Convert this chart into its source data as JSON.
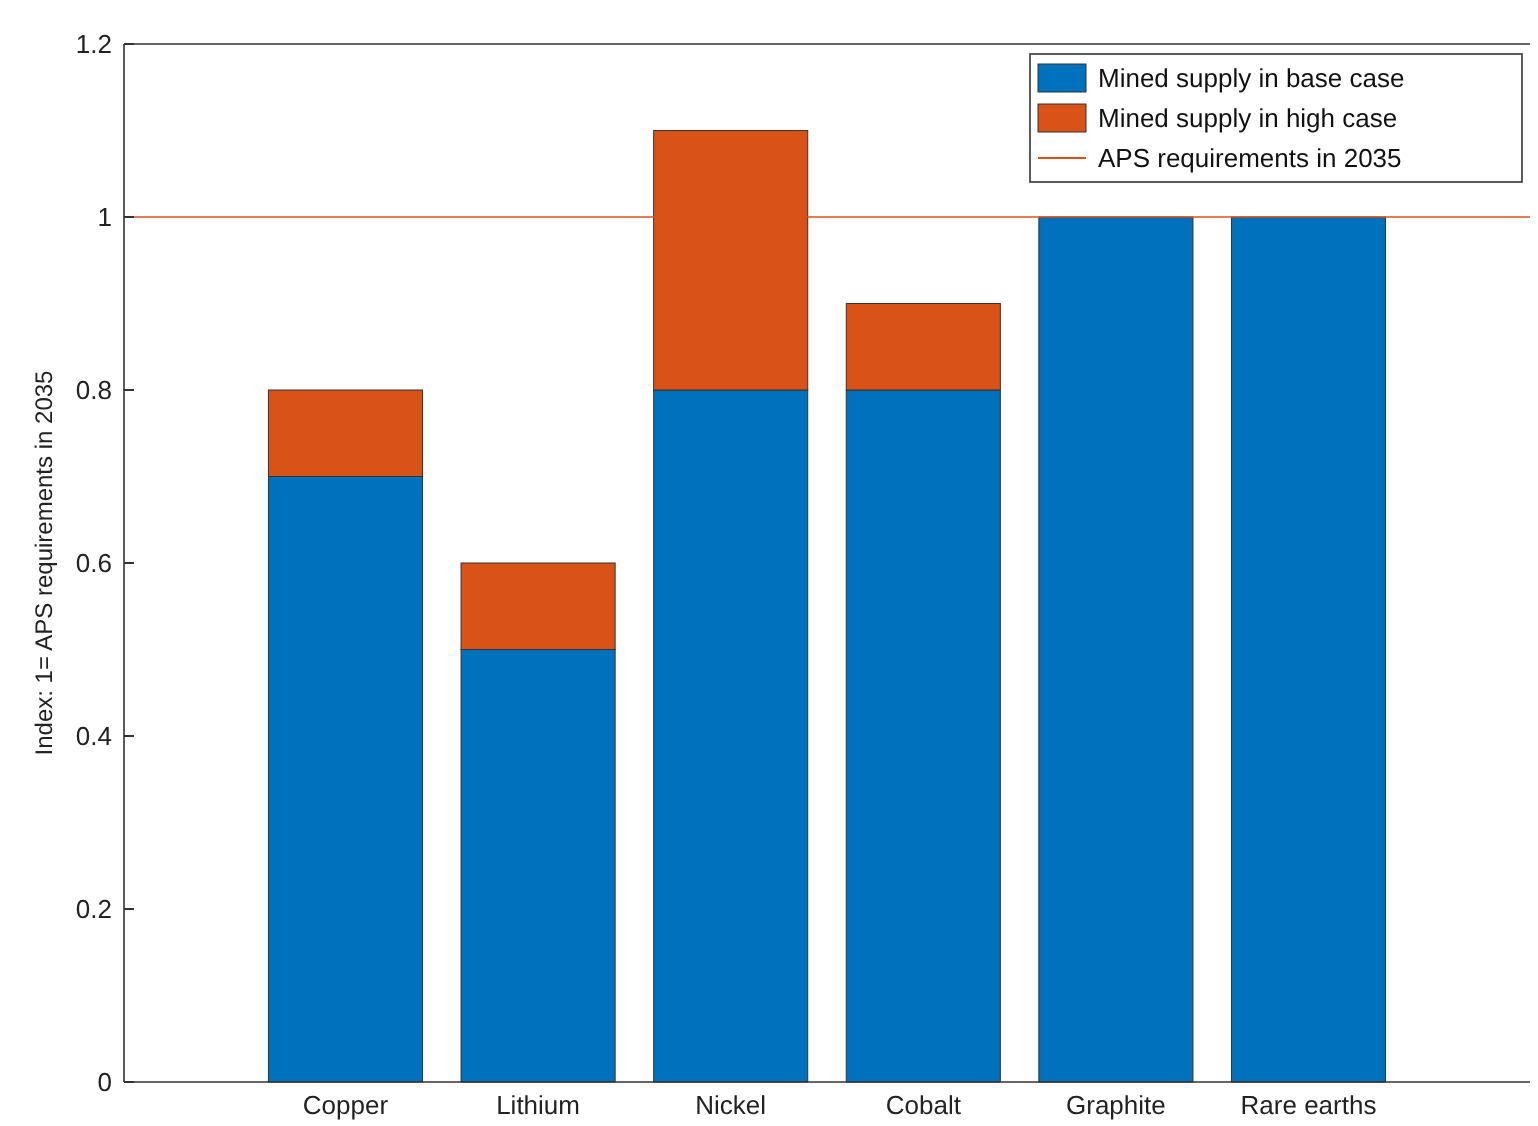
{
  "chart_data": {
    "type": "bar",
    "stacked": true,
    "categories": [
      "Copper",
      "Lithium",
      "Nickel",
      "Cobalt",
      "Graphite",
      "Rare earths"
    ],
    "series": [
      {
        "name": "Mined supply in base case",
        "color": "#0072bd",
        "values": [
          0.7,
          0.5,
          0.8,
          0.8,
          1.0,
          1.0
        ]
      },
      {
        "name": "Mined supply in high case",
        "color": "#d95319",
        "values": [
          0.1,
          0.1,
          0.3,
          0.1,
          0,
          0
        ]
      }
    ],
    "ylabel": "Index: 1= APS requirements in 2035",
    "ylim": [
      0,
      1.2
    ],
    "yticks": [
      0,
      0.2,
      0.4,
      0.6,
      0.8,
      1,
      1.2
    ],
    "ref_lines": [
      {
        "axis": "y",
        "value": 1,
        "label": "APS requirements in 2035",
        "color": "#d95319"
      }
    ],
    "grid": false,
    "legend": "top right"
  }
}
